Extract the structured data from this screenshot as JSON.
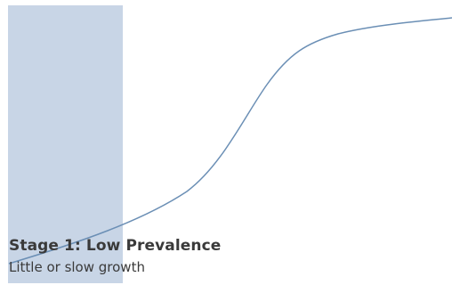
{
  "stage": {
    "title": "Stage 1: Low Prevalence",
    "subtitle": "Little or slow growth"
  },
  "colors": {
    "band": "#c8d5e6",
    "curve": "#6b8fb5",
    "text": "#3a3a3a"
  }
}
